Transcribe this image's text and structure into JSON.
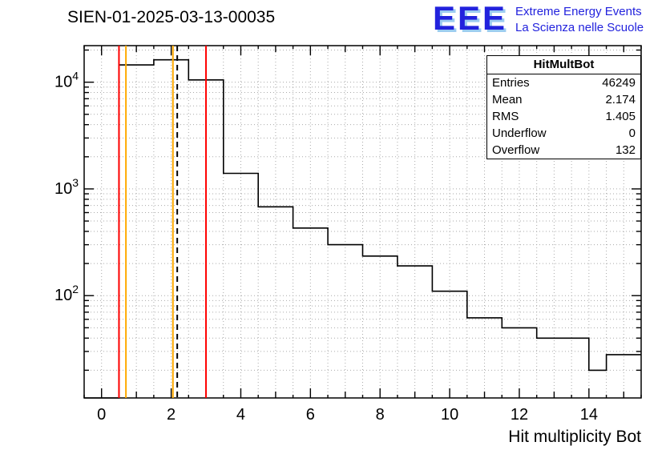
{
  "header": {
    "title": "SIEN-01-2025-03-13-00035"
  },
  "logo": {
    "text": "EEE",
    "line1": "Extreme Energy Events",
    "line2": "La Scienza nelle Scuole",
    "color": "#2222dd",
    "shadow_color": "#9cccf0"
  },
  "stats": {
    "title": "HitMultBot",
    "rows": [
      {
        "label": "Entries",
        "value": "46249"
      },
      {
        "label": "Mean",
        "value": "2.174"
      },
      {
        "label": "RMS",
        "value": "1.405"
      },
      {
        "label": "Underflow",
        "value": "0"
      },
      {
        "label": "Overflow",
        "value": "132"
      }
    ]
  },
  "chart_data": {
    "type": "bar",
    "subtype": "step-histogram",
    "title": "SIEN-01-2025-03-13-00035",
    "xlabel": "Hit multiplicity Bot",
    "ylabel": "",
    "y_scale": "log",
    "x_range": [
      -0.5,
      15.5
    ],
    "y_range": [
      11,
      22000
    ],
    "grid": true,
    "grid_color": "#aaaaaa",
    "line_color": "#000000",
    "first_edge": -0.5,
    "bin_width": 0.5,
    "counts": [
      0,
      0,
      14500,
      14500,
      16200,
      16200,
      10500,
      10500,
      1400,
      1400,
      680,
      680,
      430,
      430,
      300,
      300,
      235,
      235,
      190,
      190,
      110,
      110,
      62,
      62,
      50,
      50,
      40,
      40,
      40,
      20,
      28,
      28
    ],
    "x_tick_labels": [
      0,
      2,
      4,
      6,
      8,
      10,
      12,
      14
    ],
    "y_tick_exponents": [
      2,
      3,
      4
    ],
    "marker_lines": [
      {
        "x": 0.5,
        "color": "#ff0000",
        "style": "solid",
        "name": "red-marker-line-left"
      },
      {
        "x": 0.7,
        "color": "#ffaa00",
        "style": "solid",
        "name": "orange-marker-line-left"
      },
      {
        "x": 2.05,
        "color": "#ffaa00",
        "style": "solid",
        "name": "orange-marker-line-right"
      },
      {
        "x": 2.174,
        "color": "#000000",
        "style": "dashed",
        "name": "mean-dashed-line"
      },
      {
        "x": 3.0,
        "color": "#ff0000",
        "style": "solid",
        "name": "red-marker-line-right"
      }
    ]
  }
}
